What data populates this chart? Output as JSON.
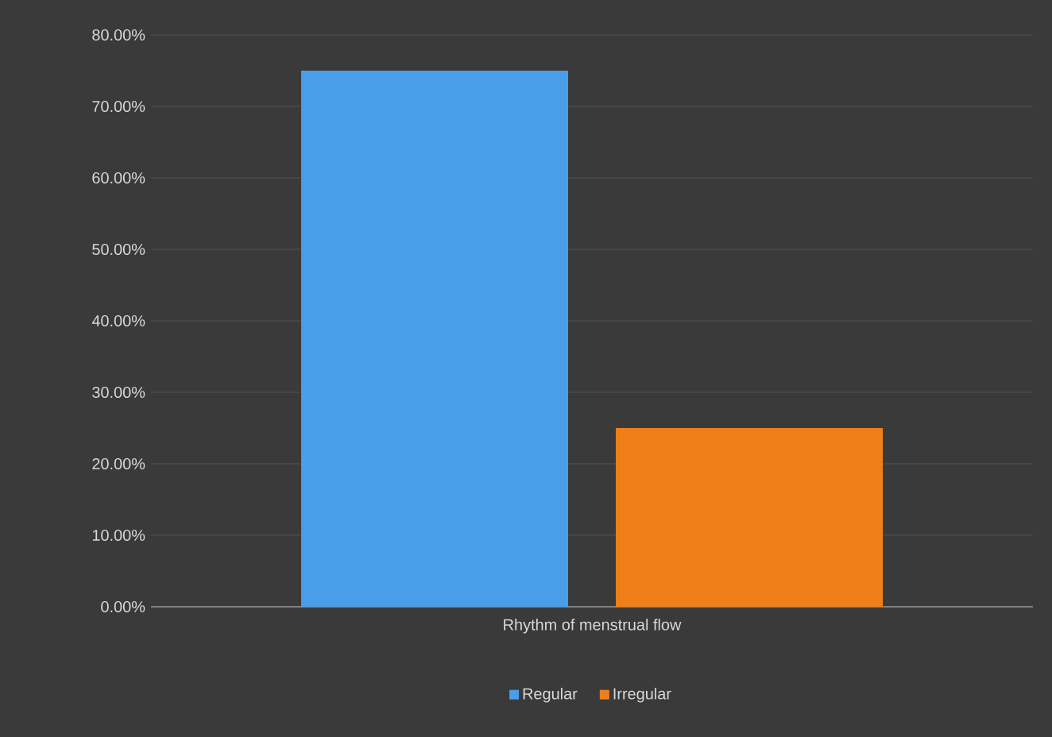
{
  "chart_data": {
    "type": "bar",
    "categories": [
      "Rhythm of menstrual flow"
    ],
    "series": [
      {
        "name": "Regular",
        "color": "#4a9de8",
        "values": [
          75
        ]
      },
      {
        "name": "Irregular",
        "color": "#f07f1a",
        "values": [
          25
        ]
      }
    ],
    "ylim": [
      0,
      80
    ],
    "yticks": [
      {
        "value": 0,
        "label": "0.00%"
      },
      {
        "value": 10,
        "label": "10.00%"
      },
      {
        "value": 20,
        "label": "20.00%"
      },
      {
        "value": 30,
        "label": "30.00%"
      },
      {
        "value": 40,
        "label": "40.00%"
      },
      {
        "value": 50,
        "label": "50.00%"
      },
      {
        "value": 60,
        "label": "60.00%"
      },
      {
        "value": 70,
        "label": "70.00%"
      },
      {
        "value": 80,
        "label": "80.00%"
      }
    ],
    "grid": "y",
    "legend": "bottom"
  }
}
